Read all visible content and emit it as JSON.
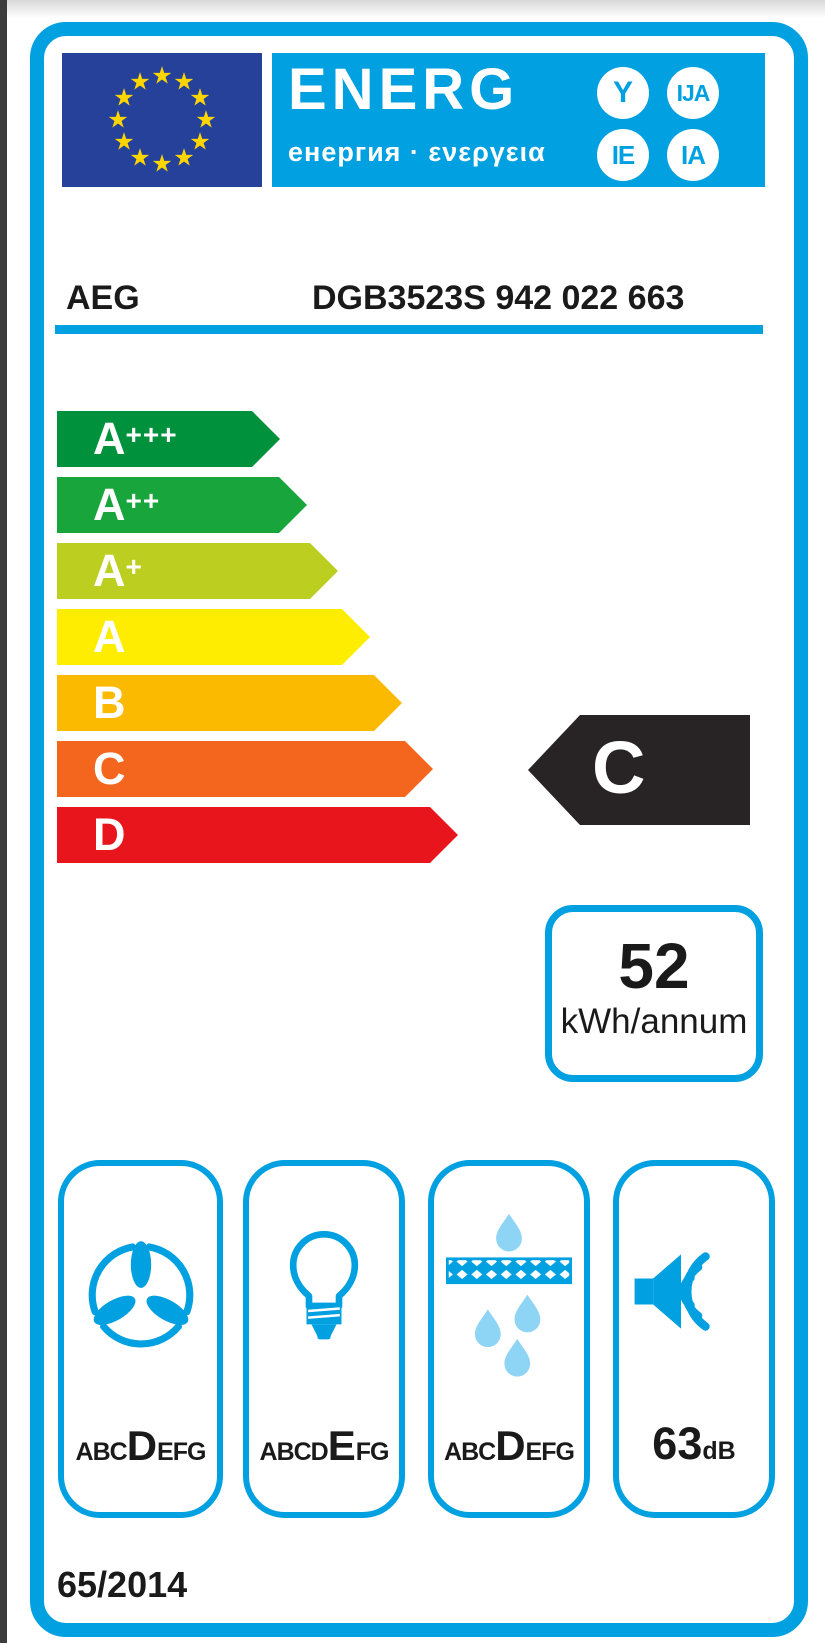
{
  "header": {
    "energ": "ENERG",
    "energ_sub": "енергия · ενεργεια",
    "badges": [
      {
        "label": "Y"
      },
      {
        "label": "IJA"
      },
      {
        "label": "IE"
      },
      {
        "label": "IA"
      }
    ]
  },
  "product": {
    "brand": "AEG",
    "model": "DGB3523S  942 022 663"
  },
  "scale": [
    {
      "letter": "A",
      "suffix": "+++",
      "color": "#00913d",
      "length": 223
    },
    {
      "letter": "A",
      "suffix": "++",
      "color": "#17a53c",
      "length": 250
    },
    {
      "letter": "A",
      "suffix": "+",
      "color": "#bccf20",
      "length": 281
    },
    {
      "letter": "A",
      "suffix": "",
      "color": "#ffed00",
      "length": 313
    },
    {
      "letter": "B",
      "suffix": "",
      "color": "#fbba00",
      "length": 345
    },
    {
      "letter": "C",
      "suffix": "",
      "color": "#f4661e",
      "length": 376
    },
    {
      "letter": "D",
      "suffix": "",
      "color": "#e9151d",
      "length": 401
    }
  ],
  "rating": {
    "grade": "C",
    "color": "#282425"
  },
  "energy": {
    "value": "52",
    "unit": "kWh/annum"
  },
  "metrics": [
    {
      "icon": "fan-icon",
      "pre": "ABC",
      "active": "D",
      "post": "EFG"
    },
    {
      "icon": "bulb-icon",
      "pre": "ABCD",
      "active": "E",
      "post": "FG"
    },
    {
      "icon": "grease-filter-icon",
      "pre": "ABC",
      "active": "D",
      "post": "EFG"
    },
    {
      "icon": "noise-icon",
      "value": "63",
      "unit": "dB"
    }
  ],
  "regulation": "65/2014",
  "colors": {
    "accent": "#00a0e1",
    "flag_blue": "#26419a",
    "star_yellow": "#ffd500",
    "droplet": "#8ed4f4",
    "rating_black": "#282425",
    "ink": "#1a1a1a"
  }
}
